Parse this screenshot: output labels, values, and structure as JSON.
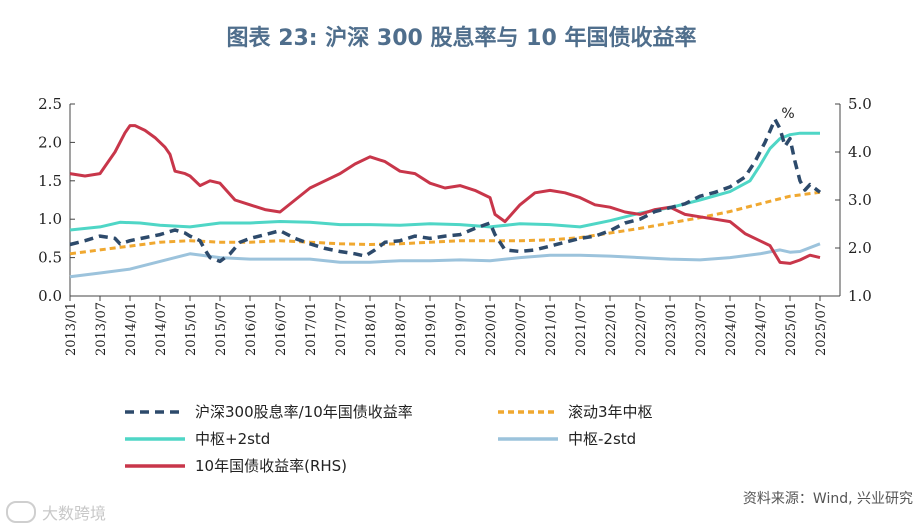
{
  "title": "图表 23: 沪深 300 股息率与 10 年国债收益率",
  "source": "资料来源：Wind, 兴业研究",
  "watermark": "大数跨境",
  "colors": {
    "dividend_ratio": "#2d4a6b",
    "rolling_center": "#f0a830",
    "center_plus": "#4fd6c6",
    "center_minus": "#9cc3dc",
    "bond_yield": "#c8364a",
    "axis": "#444444"
  },
  "legend": {
    "dividend_ratio": "沪深300股息率/10年国债收益率",
    "rolling_center": "滚动3年中枢",
    "center_plus": "中枢+2std",
    "center_minus": "中枢-2std",
    "bond_yield": "10年国债收益率(RHS)"
  },
  "chart_data": {
    "type": "line",
    "x_tick_labels": [
      "2013/01",
      "2013/07",
      "2014/01",
      "2014/07",
      "2015/01",
      "2015/07",
      "2016/01",
      "2016/07",
      "2017/01",
      "2017/07",
      "2018/01",
      "2018/07",
      "2019/01",
      "2019/07",
      "2020/01",
      "2020/07",
      "2021/01",
      "2021/07",
      "2022/01",
      "2022/07",
      "2023/01",
      "2023/07",
      "2024/01",
      "2024/07",
      "2025/01",
      "2025/07"
    ],
    "x_range_months": [
      0,
      154
    ],
    "left_axis": {
      "range": [
        0,
        2.5
      ],
      "ticks": [
        "0.0",
        "0.5",
        "1.0",
        "1.5",
        "2.0",
        "2.5"
      ]
    },
    "right_axis": {
      "range": [
        1.0,
        5.0
      ],
      "ticks": [
        "1.0",
        "2.0",
        "3.0",
        "4.0",
        "5.0"
      ]
    },
    "annotation": "%",
    "series": [
      {
        "key": "dividend_ratio",
        "name": "沪深300股息率/10年国债收益率",
        "axis": "left",
        "style": "dashed",
        "points": [
          [
            0,
            0.67
          ],
          [
            3,
            0.72
          ],
          [
            6,
            0.78
          ],
          [
            9,
            0.75
          ],
          [
            10,
            0.68
          ],
          [
            12,
            0.72
          ],
          [
            15,
            0.76
          ],
          [
            18,
            0.8
          ],
          [
            21,
            0.86
          ],
          [
            23,
            0.82
          ],
          [
            24,
            0.78
          ],
          [
            26,
            0.72
          ],
          [
            27,
            0.6
          ],
          [
            28,
            0.5
          ],
          [
            30,
            0.45
          ],
          [
            32,
            0.55
          ],
          [
            34,
            0.7
          ],
          [
            36,
            0.75
          ],
          [
            39,
            0.8
          ],
          [
            42,
            0.85
          ],
          [
            45,
            0.75
          ],
          [
            48,
            0.68
          ],
          [
            51,
            0.62
          ],
          [
            54,
            0.58
          ],
          [
            57,
            0.55
          ],
          [
            59,
            0.52
          ],
          [
            61,
            0.6
          ],
          [
            63,
            0.7
          ],
          [
            66,
            0.72
          ],
          [
            69,
            0.78
          ],
          [
            72,
            0.75
          ],
          [
            75,
            0.78
          ],
          [
            78,
            0.8
          ],
          [
            81,
            0.88
          ],
          [
            84,
            0.95
          ],
          [
            85,
            0.8
          ],
          [
            87,
            0.6
          ],
          [
            90,
            0.58
          ],
          [
            93,
            0.6
          ],
          [
            96,
            0.65
          ],
          [
            99,
            0.7
          ],
          [
            102,
            0.75
          ],
          [
            105,
            0.78
          ],
          [
            108,
            0.85
          ],
          [
            111,
            0.95
          ],
          [
            114,
            1.0
          ],
          [
            117,
            1.1
          ],
          [
            120,
            1.15
          ],
          [
            123,
            1.2
          ],
          [
            126,
            1.3
          ],
          [
            129,
            1.35
          ],
          [
            132,
            1.42
          ],
          [
            135,
            1.55
          ],
          [
            137,
            1.75
          ],
          [
            139,
            2.0
          ],
          [
            140,
            2.15
          ],
          [
            141,
            2.3
          ],
          [
            142,
            2.18
          ],
          [
            143,
            1.95
          ],
          [
            144,
            2.05
          ],
          [
            145,
            1.75
          ],
          [
            146,
            1.5
          ],
          [
            147,
            1.38
          ],
          [
            148,
            1.45
          ],
          [
            150,
            1.35
          ]
        ]
      },
      {
        "key": "rolling_center",
        "name": "滚动3年中枢",
        "axis": "left",
        "style": "dashed",
        "points": [
          [
            0,
            0.55
          ],
          [
            6,
            0.6
          ],
          [
            12,
            0.65
          ],
          [
            18,
            0.7
          ],
          [
            24,
            0.72
          ],
          [
            30,
            0.7
          ],
          [
            36,
            0.7
          ],
          [
            42,
            0.72
          ],
          [
            48,
            0.7
          ],
          [
            54,
            0.68
          ],
          [
            60,
            0.67
          ],
          [
            66,
            0.68
          ],
          [
            72,
            0.7
          ],
          [
            78,
            0.72
          ],
          [
            84,
            0.72
          ],
          [
            90,
            0.72
          ],
          [
            96,
            0.73
          ],
          [
            102,
            0.76
          ],
          [
            108,
            0.82
          ],
          [
            114,
            0.88
          ],
          [
            120,
            0.95
          ],
          [
            126,
            1.02
          ],
          [
            132,
            1.1
          ],
          [
            138,
            1.2
          ],
          [
            144,
            1.3
          ],
          [
            150,
            1.35
          ]
        ]
      },
      {
        "key": "center_plus",
        "name": "中枢+2std",
        "axis": "left",
        "style": "solid",
        "points": [
          [
            0,
            0.86
          ],
          [
            6,
            0.9
          ],
          [
            10,
            0.96
          ],
          [
            14,
            0.95
          ],
          [
            18,
            0.92
          ],
          [
            24,
            0.9
          ],
          [
            30,
            0.95
          ],
          [
            36,
            0.95
          ],
          [
            42,
            0.97
          ],
          [
            48,
            0.96
          ],
          [
            54,
            0.93
          ],
          [
            60,
            0.93
          ],
          [
            66,
            0.92
          ],
          [
            72,
            0.94
          ],
          [
            78,
            0.93
          ],
          [
            84,
            0.9
          ],
          [
            90,
            0.94
          ],
          [
            96,
            0.93
          ],
          [
            102,
            0.9
          ],
          [
            108,
            0.98
          ],
          [
            114,
            1.08
          ],
          [
            120,
            1.15
          ],
          [
            126,
            1.25
          ],
          [
            132,
            1.36
          ],
          [
            136,
            1.5
          ],
          [
            138,
            1.7
          ],
          [
            140,
            1.92
          ],
          [
            142,
            2.05
          ],
          [
            144,
            2.1
          ],
          [
            146,
            2.12
          ],
          [
            150,
            2.12
          ]
        ]
      },
      {
        "key": "center_minus",
        "name": "中枢-2std",
        "axis": "left",
        "style": "solid",
        "points": [
          [
            0,
            0.25
          ],
          [
            6,
            0.3
          ],
          [
            12,
            0.35
          ],
          [
            18,
            0.45
          ],
          [
            24,
            0.55
          ],
          [
            30,
            0.5
          ],
          [
            36,
            0.48
          ],
          [
            42,
            0.48
          ],
          [
            48,
            0.48
          ],
          [
            54,
            0.44
          ],
          [
            60,
            0.44
          ],
          [
            66,
            0.46
          ],
          [
            72,
            0.46
          ],
          [
            78,
            0.47
          ],
          [
            84,
            0.46
          ],
          [
            90,
            0.5
          ],
          [
            96,
            0.53
          ],
          [
            102,
            0.53
          ],
          [
            108,
            0.52
          ],
          [
            114,
            0.5
          ],
          [
            120,
            0.48
          ],
          [
            126,
            0.47
          ],
          [
            132,
            0.5
          ],
          [
            138,
            0.55
          ],
          [
            142,
            0.6
          ],
          [
            144,
            0.57
          ],
          [
            146,
            0.58
          ],
          [
            150,
            0.68
          ]
        ]
      },
      {
        "key": "bond_yield",
        "name": "10年国债收益率(RHS)",
        "axis": "right",
        "style": "solid",
        "points": [
          [
            0,
            3.55
          ],
          [
            3,
            3.5
          ],
          [
            6,
            3.55
          ],
          [
            7,
            3.7
          ],
          [
            9,
            4.0
          ],
          [
            11,
            4.4
          ],
          [
            12,
            4.55
          ],
          [
            13,
            4.55
          ],
          [
            15,
            4.45
          ],
          [
            17,
            4.3
          ],
          [
            19,
            4.1
          ],
          [
            20,
            3.95
          ],
          [
            21,
            3.6
          ],
          [
            23,
            3.55
          ],
          [
            24,
            3.5
          ],
          [
            26,
            3.3
          ],
          [
            28,
            3.4
          ],
          [
            30,
            3.35
          ],
          [
            33,
            3.0
          ],
          [
            36,
            2.9
          ],
          [
            39,
            2.8
          ],
          [
            42,
            2.75
          ],
          [
            45,
            3.0
          ],
          [
            48,
            3.25
          ],
          [
            51,
            3.4
          ],
          [
            54,
            3.55
          ],
          [
            57,
            3.75
          ],
          [
            60,
            3.9
          ],
          [
            63,
            3.8
          ],
          [
            66,
            3.6
          ],
          [
            69,
            3.55
          ],
          [
            72,
            3.35
          ],
          [
            75,
            3.25
          ],
          [
            78,
            3.3
          ],
          [
            81,
            3.2
          ],
          [
            84,
            3.05
          ],
          [
            85,
            2.7
          ],
          [
            87,
            2.55
          ],
          [
            90,
            2.9
          ],
          [
            93,
            3.15
          ],
          [
            96,
            3.2
          ],
          [
            99,
            3.15
          ],
          [
            102,
            3.05
          ],
          [
            105,
            2.9
          ],
          [
            108,
            2.85
          ],
          [
            111,
            2.75
          ],
          [
            114,
            2.7
          ],
          [
            117,
            2.8
          ],
          [
            120,
            2.85
          ],
          [
            123,
            2.7
          ],
          [
            126,
            2.65
          ],
          [
            129,
            2.6
          ],
          [
            132,
            2.55
          ],
          [
            135,
            2.3
          ],
          [
            138,
            2.15
          ],
          [
            140,
            2.05
          ],
          [
            142,
            1.7
          ],
          [
            144,
            1.68
          ],
          [
            146,
            1.75
          ],
          [
            148,
            1.85
          ],
          [
            150,
            1.8
          ]
        ]
      }
    ]
  }
}
